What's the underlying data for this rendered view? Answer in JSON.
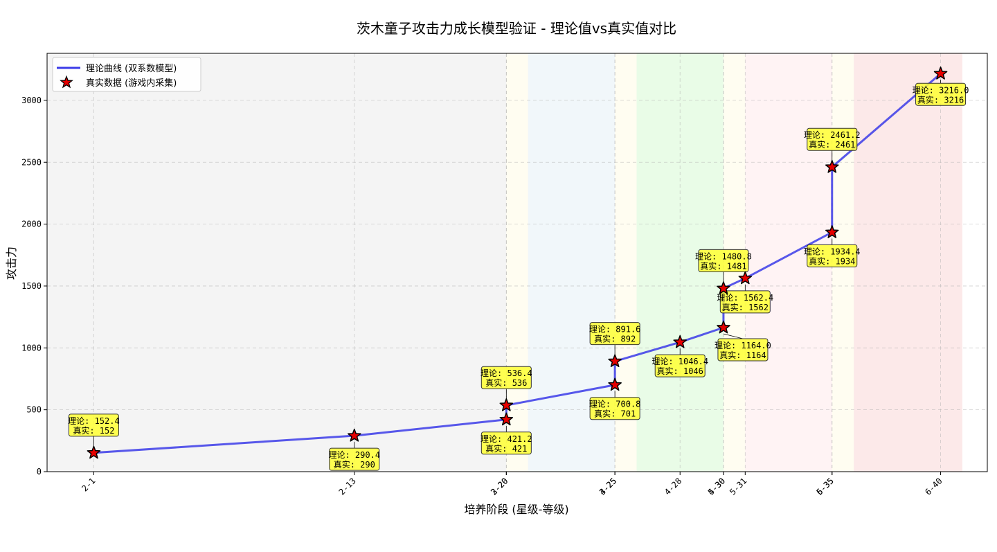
{
  "chart_data": {
    "type": "line",
    "title": "茨木童子攻击力成长模型验证 - 理论值vs真实值对比",
    "xlabel": "培养阶段 (星级-等级)",
    "ylabel": "攻击力",
    "ylim": [
      0,
      3380
    ],
    "yticks": [
      0,
      500,
      1000,
      1500,
      2000,
      2500,
      3000
    ],
    "grid": true,
    "legend_placement": "top-left",
    "categories": [
      "2-1",
      "2-13",
      "2-20",
      "3-20",
      "3-25",
      "4-25",
      "4-28",
      "4-30",
      "5-30",
      "5-31",
      "5-35",
      "6-35",
      "6-40"
    ],
    "x_positions": [
      1,
      13,
      20,
      20,
      25,
      25,
      28,
      30,
      30,
      31,
      35,
      35,
      40
    ],
    "xlim": [
      -1.15,
      42.15
    ],
    "series": [
      {
        "name": "理论曲线 (双系数模型)",
        "style": "line",
        "color": "#3b3be8",
        "values": [
          152.4,
          290.4,
          421.2,
          536.4,
          700.8,
          891.6,
          1046.4,
          1164.0,
          1480.8,
          1562.4,
          1934.4,
          2461.2,
          3216.0
        ]
      },
      {
        "name": "真实数据 (游戏内采集)",
        "style": "marker-star",
        "color": "#e60000",
        "values": [
          152,
          290,
          421,
          536,
          701,
          892,
          1046,
          1164,
          1481,
          1562,
          1934,
          2461,
          3216
        ]
      }
    ],
    "annotations": [
      {
        "theory": "理论: 152.4",
        "real": "真实: 152",
        "placement": "above"
      },
      {
        "theory": "理论: 290.4",
        "real": "真实: 290",
        "placement": "below"
      },
      {
        "theory": "理论: 421.2",
        "real": "真实: 421",
        "placement": "below"
      },
      {
        "theory": "理论: 536.4",
        "real": "真实: 536",
        "placement": "above"
      },
      {
        "theory": "理论: 700.8",
        "real": "真实: 701",
        "placement": "below"
      },
      {
        "theory": "理论: 891.6",
        "real": "真实: 892",
        "placement": "above"
      },
      {
        "theory": "理论: 1046.4",
        "real": "真实: 1046",
        "placement": "below"
      },
      {
        "theory": "理论: 1164.0",
        "real": "真实: 1164",
        "placement": "below-right"
      },
      {
        "theory": "理论: 1480.8",
        "real": "真实: 1481",
        "placement": "above"
      },
      {
        "theory": "理论: 1562.4",
        "real": "真实: 1562",
        "placement": "below"
      },
      {
        "theory": "理论: 1934.4",
        "real": "真实: 1934",
        "placement": "below"
      },
      {
        "theory": "理论: 2461.2",
        "real": "真实: 2461",
        "placement": "above"
      },
      {
        "theory": "理论: 3216.0",
        "real": "真实: 3216",
        "placement": "below"
      }
    ],
    "background_bands": [
      {
        "from": -1.15,
        "to": 20,
        "color": "#d9d9d9"
      },
      {
        "from": 20,
        "to": 21,
        "color": "#fff8cf"
      },
      {
        "from": 21,
        "to": 25,
        "color": "#cfe3f0"
      },
      {
        "from": 25,
        "to": 26,
        "color": "#fff8cf"
      },
      {
        "from": 26,
        "to": 30,
        "color": "#b5f5b0"
      },
      {
        "from": 30,
        "to": 31,
        "color": "#fff8cf"
      },
      {
        "from": 31,
        "to": 35,
        "color": "#ffd6d9"
      },
      {
        "from": 35,
        "to": 36,
        "color": "#fff8cf"
      },
      {
        "from": 36,
        "to": 41,
        "color": "#f4b6b6"
      }
    ]
  }
}
